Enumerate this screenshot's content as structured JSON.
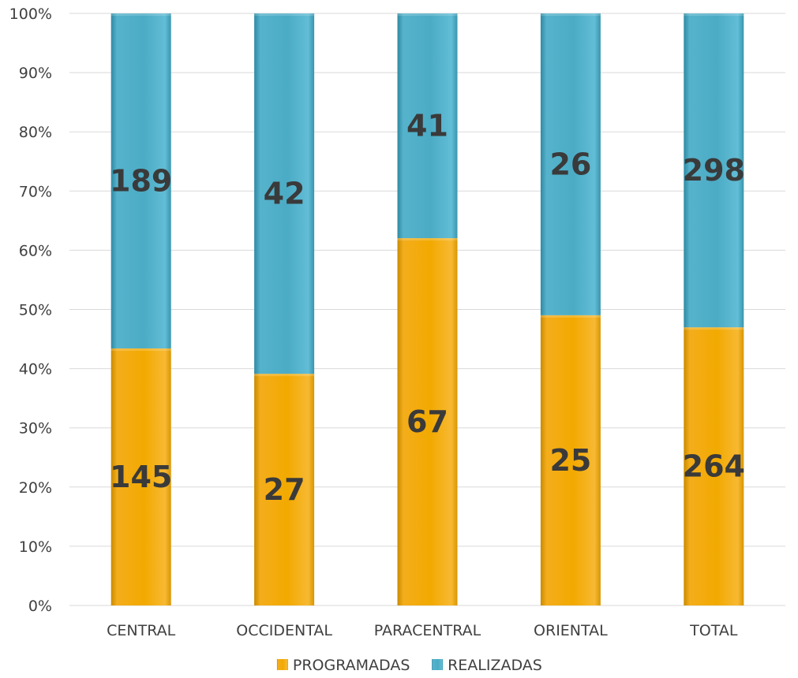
{
  "chart_data": {
    "type": "bar",
    "stacked": "percent",
    "categories": [
      "CENTRAL",
      "OCCIDENTAL",
      "PARACENTRAL",
      "ORIENTAL",
      "TOTAL"
    ],
    "series": [
      {
        "name": "PROGRAMADAS",
        "values": [
          145,
          27,
          67,
          25,
          264
        ],
        "color": "#F2A900"
      },
      {
        "name": "REALIZADAS",
        "values": [
          189,
          42,
          41,
          26,
          298
        ],
        "color": "#4BACC6"
      }
    ],
    "ylim": [
      0,
      100
    ],
    "yticks": [
      "0%",
      "10%",
      "20%",
      "30%",
      "40%",
      "50%",
      "60%",
      "70%",
      "80%",
      "90%",
      "100%"
    ],
    "grid": true,
    "legend": "bottom",
    "title": "",
    "xlabel": "",
    "ylabel": ""
  }
}
